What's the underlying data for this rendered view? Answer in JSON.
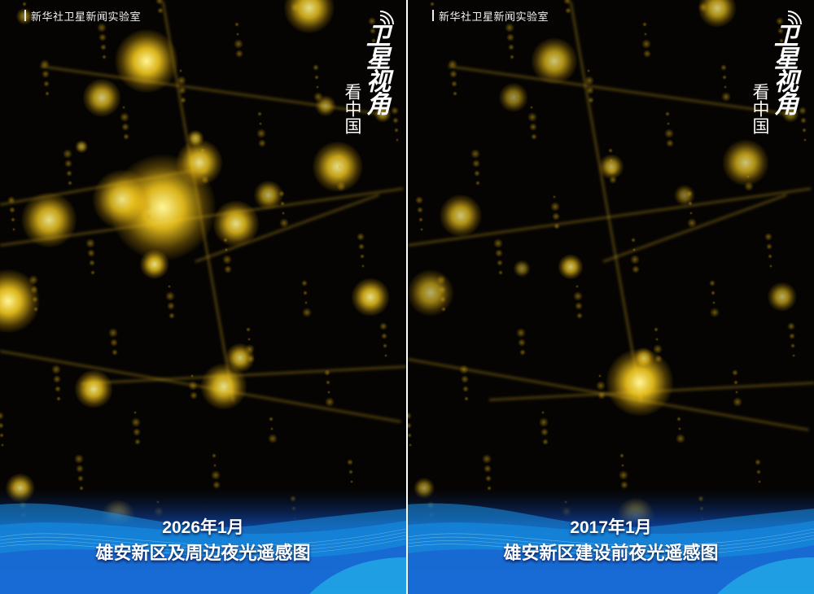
{
  "credit": "新华社卫星新闻实验室",
  "logo": {
    "title": "卫星视角",
    "subtitle": "看中国"
  },
  "panels": [
    {
      "date": "2026年1月",
      "title": "雄安新区及周边夜光遥感图"
    },
    {
      "date": "2017年1月",
      "title": "雄安新区建设前夜光遥感图"
    }
  ],
  "colors": {
    "light": "#ffd21e",
    "background": "#050402",
    "banner": "#1a6fd6"
  }
}
